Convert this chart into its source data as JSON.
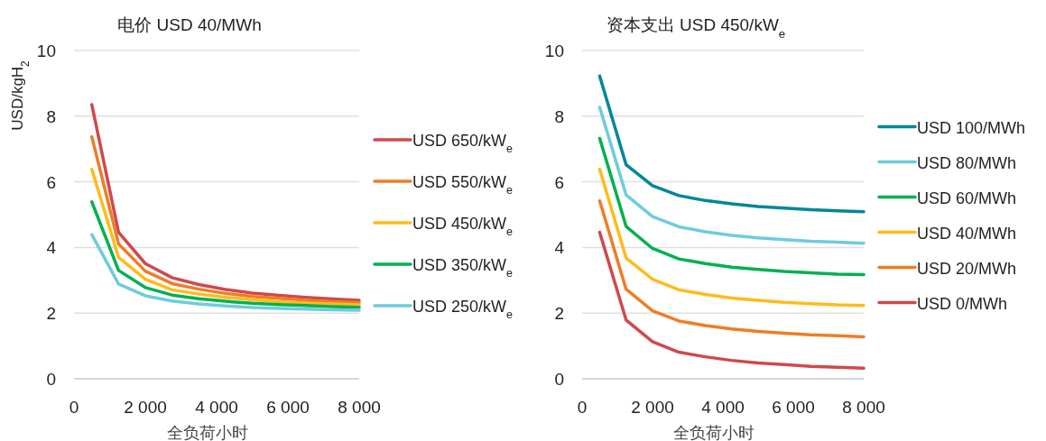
{
  "chart_data": [
    {
      "type": "line",
      "title": "电价 USD 40/MWh",
      "xlabel": "全负荷小时",
      "ylabel": "USD/kgH$_{2}$",
      "x": [
        500,
        1250,
        2000,
        2750,
        3500,
        4250,
        5000,
        5750,
        6500,
        7250,
        8000
      ],
      "xlim": [
        0,
        8000
      ],
      "xticks": [
        0,
        {
          "value": 2000,
          "label": "2 000"
        },
        {
          "value": 4000,
          "label": "4 000"
        },
        {
          "value": 6000,
          "label": "6 000"
        },
        {
          "value": 8000,
          "label": "8 000"
        }
      ],
      "ylim": [
        0,
        10
      ],
      "yticks": [
        0,
        2,
        4,
        6,
        8,
        10
      ],
      "grid": "y",
      "legend": "right",
      "series": [
        {
          "name": "USD 650/kW$_{e}$",
          "color": "#d0484c",
          "values": [
            8.35,
            4.46,
            3.51,
            3.08,
            2.87,
            2.72,
            2.61,
            2.54,
            2.48,
            2.43,
            2.39
          ]
        },
        {
          "name": "USD 550/kW$_{e}$",
          "color": "#ee7d27",
          "values": [
            7.37,
            4.11,
            3.28,
            2.9,
            2.73,
            2.6,
            2.51,
            2.45,
            2.39,
            2.35,
            2.32
          ]
        },
        {
          "name": "USD 450/kW$_{e}$",
          "color": "#ffbb1c",
          "values": [
            6.38,
            3.7,
            3.03,
            2.71,
            2.58,
            2.48,
            2.41,
            2.35,
            2.31,
            2.28,
            2.25
          ]
        },
        {
          "name": "USD 350/kW$_{e}$",
          "color": "#00b050",
          "values": [
            5.39,
            3.3,
            2.78,
            2.55,
            2.44,
            2.36,
            2.3,
            2.26,
            2.23,
            2.2,
            2.18
          ]
        },
        {
          "name": "USD 250/kW$_{e}$",
          "color": "#6dccdc",
          "values": [
            4.39,
            2.89,
            2.53,
            2.37,
            2.28,
            2.22,
            2.17,
            2.14,
            2.12,
            2.1,
            2.09
          ]
        }
      ]
    },
    {
      "type": "line",
      "title": "资本支出 USD 450/kW$_{e}$",
      "xlabel": "全负荷小时",
      "x": [
        500,
        1250,
        2000,
        2750,
        3500,
        4250,
        5000,
        5750,
        6500,
        7250,
        8000
      ],
      "xlim": [
        0,
        8000
      ],
      "xticks": [
        0,
        {
          "value": 2000,
          "label": "2 000"
        },
        {
          "value": 4000,
          "label": "4 000"
        },
        {
          "value": 6000,
          "label": "6 000"
        },
        {
          "value": 8000,
          "label": "8 000"
        }
      ],
      "ylim": [
        0,
        10
      ],
      "yticks": [
        0,
        2,
        4,
        6,
        8,
        10
      ],
      "grid": "y",
      "legend": "right",
      "series": [
        {
          "name": "USD 100/MWh",
          "color": "#00869a",
          "values": [
            9.22,
            6.52,
            5.88,
            5.58,
            5.43,
            5.33,
            5.25,
            5.2,
            5.15,
            5.12,
            5.09
          ]
        },
        {
          "name": "USD 80/MWh",
          "color": "#6dccdc",
          "values": [
            8.27,
            5.6,
            4.94,
            4.63,
            4.48,
            4.37,
            4.29,
            4.24,
            4.19,
            4.16,
            4.13
          ]
        },
        {
          "name": "USD 60/MWh",
          "color": "#00b050",
          "values": [
            7.32,
            4.64,
            3.97,
            3.65,
            3.51,
            3.4,
            3.33,
            3.27,
            3.23,
            3.19,
            3.17
          ]
        },
        {
          "name": "USD 40/MWh",
          "color": "#ffbb1c",
          "values": [
            6.38,
            3.68,
            3.03,
            2.71,
            2.57,
            2.46,
            2.39,
            2.33,
            2.29,
            2.25,
            2.23
          ]
        },
        {
          "name": "USD 20/MWh",
          "color": "#ee7d27",
          "values": [
            5.42,
            2.73,
            2.07,
            1.76,
            1.62,
            1.52,
            1.44,
            1.39,
            1.34,
            1.31,
            1.28
          ]
        },
        {
          "name": "USD 0/MWh",
          "color": "#d0484c",
          "values": [
            4.46,
            1.79,
            1.13,
            0.81,
            0.67,
            0.56,
            0.48,
            0.43,
            0.38,
            0.35,
            0.32
          ]
        }
      ]
    }
  ]
}
